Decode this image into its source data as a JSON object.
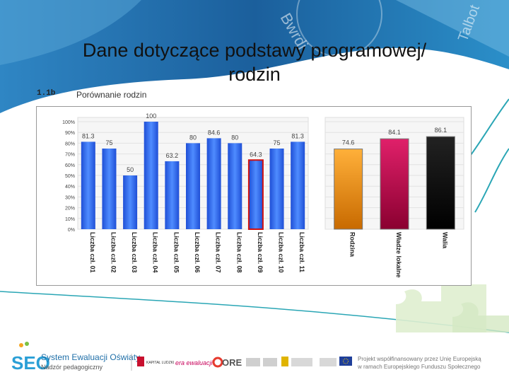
{
  "slide": {
    "title_line1": "Dane dotyczące podstawy programowej/",
    "title_line2": "rodzin",
    "watermark_words": [
      "Bwrdi",
      "Talbot"
    ],
    "colors": {
      "header_blue": "#1f6fa8",
      "teal": "#2aa6b5",
      "puzzle": "#dfeecf"
    }
  },
  "chart_header": {
    "code": "1.1b",
    "title": "Porównanie rodzin"
  },
  "chart_data": [
    {
      "type": "bar",
      "ylim": [
        0,
        100
      ],
      "yticks": [
        "0%",
        "10%",
        "20%",
        "30%",
        "40%",
        "50%",
        "60%",
        "70%",
        "80%",
        "90%",
        "100%"
      ],
      "grid": true,
      "categories": [
        "Liczba czł. 01",
        "Liczba czł. 02",
        "Liczba czł. 03",
        "Liczba czł. 04",
        "Liczba czł. 05",
        "Liczba czł. 06",
        "Liczba czł. 07",
        "Liczba czł. 08",
        "Liczba czł. 09",
        "Liczba czł. 10",
        "Liczba czł. 11"
      ],
      "values": [
        81.3,
        75,
        50,
        100,
        63.2,
        80,
        84.6,
        80,
        64.3,
        75,
        81.3
      ],
      "value_labels": [
        "81.3",
        "75",
        "50",
        "100",
        "63.2",
        "80",
        "84.6",
        "80",
        "64.3",
        "75",
        "81.3"
      ],
      "highlighted_category": "Liczba czł. 09",
      "colors": {
        "bar": "#2f6fe8",
        "highlight_border": "#d01010"
      }
    },
    {
      "type": "bar",
      "ylim": [
        0,
        100
      ],
      "grid": true,
      "categories": [
        "Rodzina",
        "Władze lokalne",
        "Walia"
      ],
      "values": [
        74.6,
        84.1,
        86.1
      ],
      "value_labels": [
        "74.6",
        "84.1",
        "86.1"
      ],
      "colors": [
        "#f08a00",
        "#c8004a",
        "#000000"
      ]
    }
  ],
  "footer": {
    "logo": "SEO",
    "system_name": "System Ewaluacji Oświaty",
    "system_sub": "Nadzór pedagogiczny",
    "partner1": "KAPITAŁ LUDZKI",
    "partner2": "era ewaluacji",
    "partner3": "ORE",
    "project_line1": "Projekt współfinansowany przez Unię Europejską",
    "project_line2": "w ramach Europejskiego Funduszu Społecznego"
  }
}
